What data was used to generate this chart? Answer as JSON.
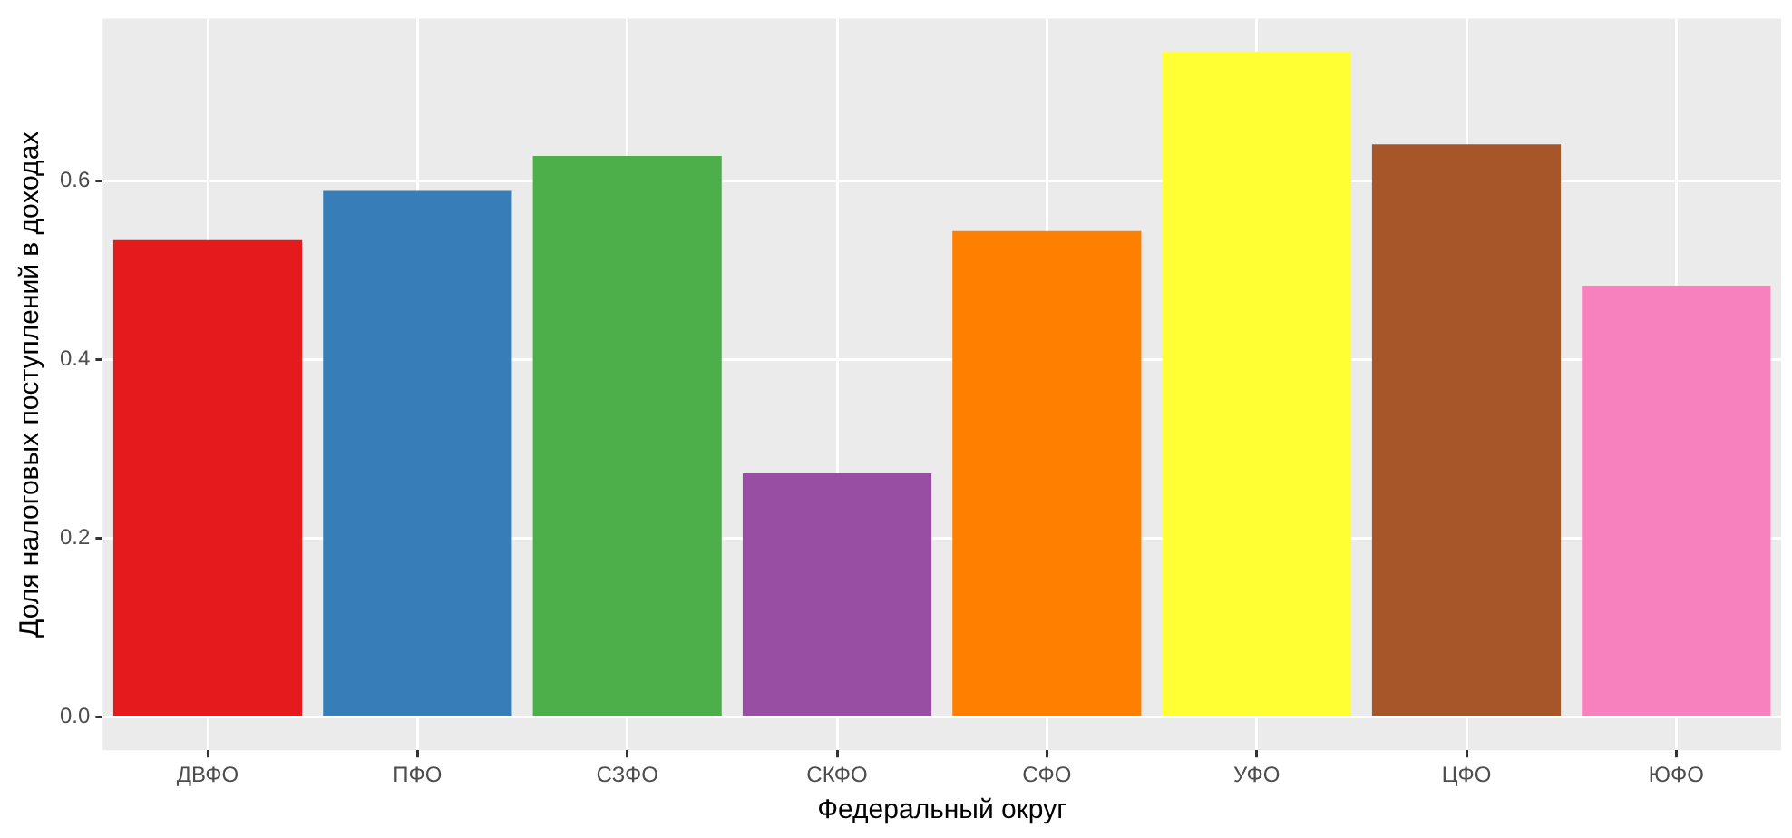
{
  "chart_data": {
    "type": "bar",
    "xlabel": "Федеральный округ",
    "ylabel": "Доля налоговых поступлений в доходах",
    "categories": [
      "ДВФО",
      "ПФО",
      "СЗФО",
      "СКФО",
      "СФО",
      "УФО",
      "ЦФО",
      "ЮФО"
    ],
    "values": [
      0.534,
      0.589,
      0.628,
      0.273,
      0.544,
      0.745,
      0.641,
      0.483
    ],
    "colors": [
      "#e41a1c",
      "#377eb8",
      "#4daf4a",
      "#984ea3",
      "#ff7f00",
      "#ffff33",
      "#a65628",
      "#f781bf"
    ],
    "ylim": [
      -0.037,
      0.782
    ],
    "yticks": [
      {
        "value": 0,
        "label": "0.0"
      },
      {
        "value": 0.2,
        "label": "0.2"
      },
      {
        "value": 0.4,
        "label": "0.4"
      },
      {
        "value": 0.6,
        "label": "0.6"
      }
    ],
    "grid": true,
    "legend": false
  }
}
